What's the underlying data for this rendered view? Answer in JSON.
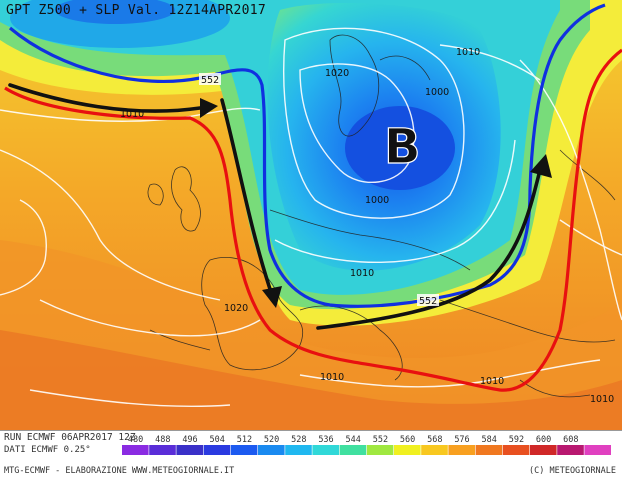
{
  "map": {
    "title": "GPT Z500 + SLP Val. 12Z14APR2017",
    "low_label": "B",
    "isobar_labels": [
      {
        "id": "i1",
        "text": "1010"
      },
      {
        "id": "i2",
        "text": "1020"
      },
      {
        "id": "i3",
        "text": "1000"
      },
      {
        "id": "i4",
        "text": "1010"
      },
      {
        "id": "i5",
        "text": "1000"
      },
      {
        "id": "i6",
        "text": "1010"
      },
      {
        "id": "i7",
        "text": "1020"
      },
      {
        "id": "i8",
        "text": "1010"
      },
      {
        "id": "i9",
        "text": "1010"
      },
      {
        "id": "i10",
        "text": "1010"
      }
    ],
    "geopotential_labels": [
      {
        "id": "g1",
        "text": "552"
      },
      {
        "id": "g2",
        "text": "552"
      }
    ],
    "line_colors": {
      "blue_contour": "#1030e0",
      "red_contour": "#e81010",
      "flow_arrow": "#111111",
      "isobar": "#ffffff"
    }
  },
  "footer": {
    "run": "RUN ECMWF 06APR2017 12Z",
    "dati": "DATI ECMWF 0.25°",
    "credit_left": "MTG-ECMWF - ELABORAZIONE WWW.METEOGIORNALE.IT",
    "credit_right": "(C) METEOGIORNALE",
    "scale": [
      {
        "label": "480",
        "color": "#8a2be2"
      },
      {
        "label": "488",
        "color": "#5a2dd8"
      },
      {
        "label": "496",
        "color": "#3a30c8"
      },
      {
        "label": "504",
        "color": "#2a3ae0"
      },
      {
        "label": "512",
        "color": "#1c5af0"
      },
      {
        "label": "520",
        "color": "#1a8af0"
      },
      {
        "label": "528",
        "color": "#20b8f0"
      },
      {
        "label": "536",
        "color": "#30d8d8"
      },
      {
        "label": "544",
        "color": "#40e0a0"
      },
      {
        "label": "552",
        "color": "#a0e840"
      },
      {
        "label": "560",
        "color": "#f0f020"
      },
      {
        "label": "568",
        "color": "#f8c820"
      },
      {
        "label": "576",
        "color": "#f8a020"
      },
      {
        "label": "584",
        "color": "#f07820"
      },
      {
        "label": "592",
        "color": "#e85020"
      },
      {
        "label": "600",
        "color": "#d02828"
      },
      {
        "label": "608",
        "color": "#b81870"
      },
      {
        "label": "",
        "color": "#e040c0"
      }
    ]
  }
}
